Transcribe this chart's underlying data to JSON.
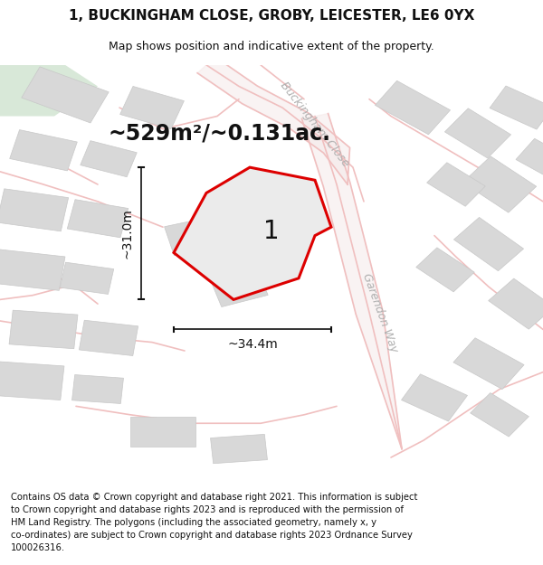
{
  "title": "1, BUCKINGHAM CLOSE, GROBY, LEICESTER, LE6 0YX",
  "subtitle": "Map shows position and indicative extent of the property.",
  "area_text": "~529m²/~0.131ac.",
  "label_1": "1",
  "dim_width": "~34.4m",
  "dim_height": "~31.0m",
  "footer": "Contains OS data © Crown copyright and database right 2021. This information is subject to Crown copyright and database rights 2023 and is reproduced with the permission of HM Land Registry. The polygons (including the associated geometry, namely x, y co-ordinates) are subject to Crown copyright and database rights 2023 Ordnance Survey 100026316.",
  "map_bg": "#f7f7f7",
  "road_color": "#f0bfbf",
  "road_fill": "#f5e8e8",
  "building_color": "#d8d8d8",
  "building_outline": "#c8c8c8",
  "green_color": "#d8e8d8",
  "plot_fill": "#ebebeb",
  "plot_outline": "#dd0000",
  "dim_line_color": "#111111",
  "text_color": "#111111",
  "road_label_color": "#b0b0b0",
  "title_fontsize": 11,
  "subtitle_fontsize": 9,
  "area_fontsize": 17,
  "label_fontsize": 20,
  "dim_fontsize": 10,
  "footer_fontsize": 7.2,
  "road_label_fontsize": 9
}
